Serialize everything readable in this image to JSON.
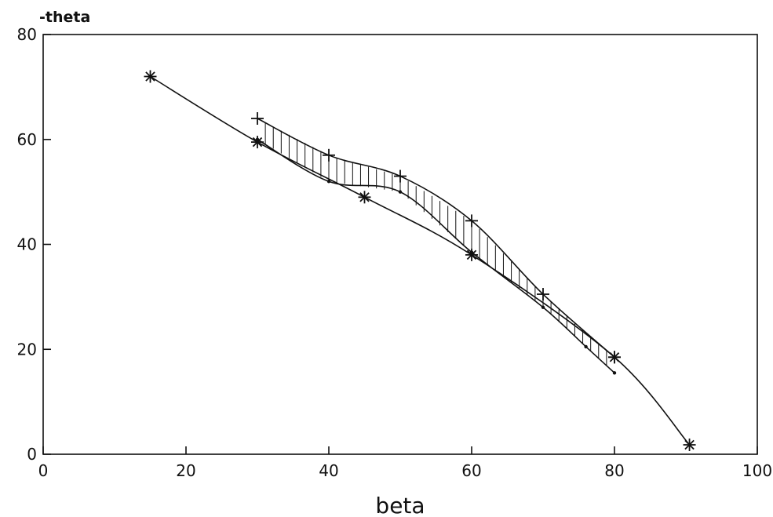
{
  "chart_data": {
    "type": "line",
    "title": "",
    "xlabel": "beta",
    "ylabel": "-theta",
    "xlim": [
      0,
      100
    ],
    "ylim": [
      0,
      80
    ],
    "xticks": [
      0,
      20,
      40,
      60,
      80,
      100
    ],
    "yticks": [
      0,
      20,
      40,
      60,
      80
    ],
    "grid": false,
    "colors": {
      "line": "#111111",
      "background": "#ffffff"
    },
    "series": [
      {
        "marker": "asterisk",
        "points": [
          [
            15,
            72
          ],
          [
            30,
            59.5
          ],
          [
            45,
            49
          ],
          [
            60,
            38
          ],
          [
            80,
            18.5
          ],
          [
            90.5,
            1.8
          ]
        ]
      },
      {
        "marker": "plus",
        "points": [
          [
            30,
            64
          ],
          [
            40,
            57
          ],
          [
            50,
            53
          ],
          [
            60,
            44.5
          ],
          [
            70,
            30.5
          ],
          [
            80,
            18.5
          ]
        ]
      },
      {
        "marker": "dot",
        "points": [
          [
            30,
            60
          ],
          [
            40,
            52
          ],
          [
            50,
            50
          ],
          [
            60,
            38.5
          ],
          [
            70,
            28
          ],
          [
            76,
            20.5
          ],
          [
            80,
            15.5
          ]
        ]
      }
    ],
    "band": {
      "description": "hatched region between plus and dot series",
      "x_range": [
        30,
        80
      ]
    }
  }
}
